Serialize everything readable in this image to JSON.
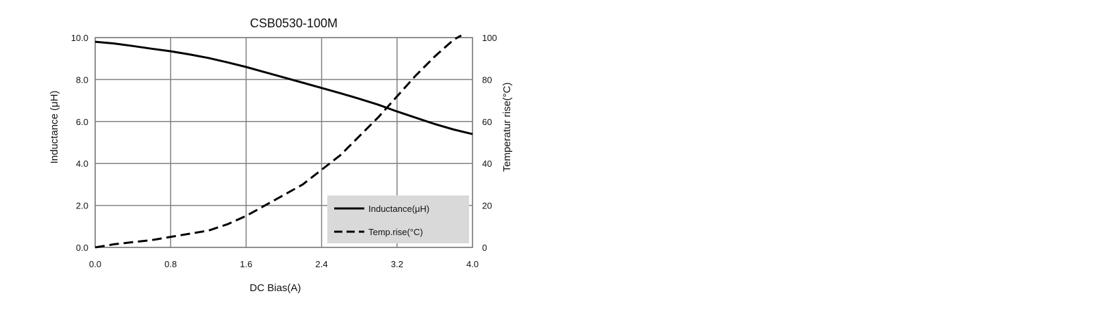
{
  "chart_data": {
    "type": "line",
    "title": "CSB0530-100M",
    "xlabel": "DC Bias(A)",
    "ylabel": "Inductance (μH)",
    "y2label": "Temperatur rise(°C)",
    "xlim": [
      0.0,
      4.0
    ],
    "ylim": [
      0.0,
      10.0
    ],
    "y2lim": [
      0,
      100
    ],
    "x_ticks": [
      "0.0",
      "0.8",
      "1.6",
      "2.4",
      "3.2",
      "4.0"
    ],
    "y_ticks": [
      "0.0",
      "2.0",
      "4.0",
      "6.0",
      "8.0",
      "10.0"
    ],
    "y2_ticks": [
      "0",
      "20",
      "40",
      "60",
      "80",
      "100"
    ],
    "grid": true,
    "legend_position": "bottom-right",
    "series": [
      {
        "name": "Inductance(μH)",
        "axis": "left",
        "style": "solid",
        "color": "#000000",
        "x": [
          0.0,
          0.2,
          0.4,
          0.6,
          0.8,
          1.0,
          1.2,
          1.4,
          1.6,
          1.8,
          2.0,
          2.2,
          2.4,
          2.6,
          2.8,
          3.0,
          3.2,
          3.4,
          3.6,
          3.8,
          4.0
        ],
        "y": [
          9.8,
          9.72,
          9.6,
          9.47,
          9.35,
          9.2,
          9.03,
          8.82,
          8.6,
          8.35,
          8.1,
          7.85,
          7.6,
          7.35,
          7.08,
          6.8,
          6.48,
          6.18,
          5.88,
          5.62,
          5.4
        ]
      },
      {
        "name": "Temp.rise(°C)",
        "axis": "right",
        "style": "dashed",
        "color": "#000000",
        "x": [
          0.0,
          0.2,
          0.4,
          0.6,
          0.8,
          1.0,
          1.2,
          1.4,
          1.6,
          1.8,
          2.0,
          2.2,
          2.4,
          2.6,
          2.8,
          3.0,
          3.2,
          3.4,
          3.6,
          3.8,
          3.88
        ],
        "y": [
          0,
          1.5,
          2.5,
          3.5,
          5,
          6.5,
          8,
          11,
          15,
          20,
          25,
          30,
          37,
          44,
          53,
          62,
          72,
          82,
          91,
          99,
          101
        ]
      }
    ]
  }
}
